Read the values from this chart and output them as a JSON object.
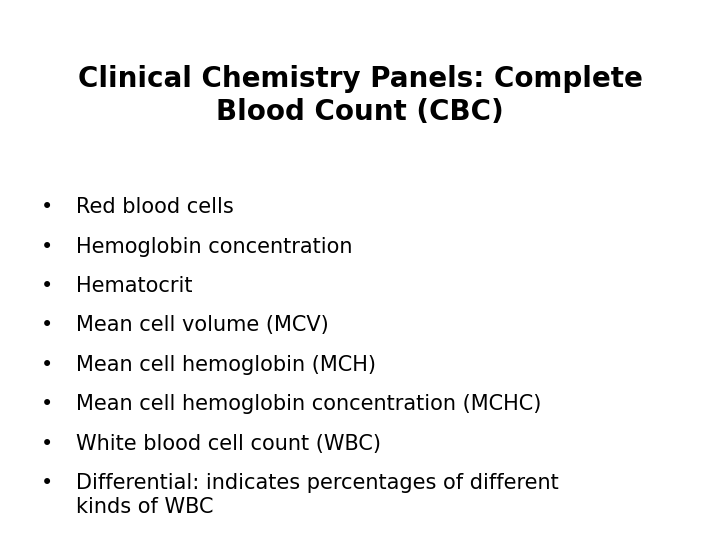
{
  "title_line1": "Clinical Chemistry Panels: Complete",
  "title_line2": "Blood Count (CBC)",
  "bullet_items": [
    "Red blood cells",
    "Hemoglobin concentration",
    "Hematocrit",
    "Mean cell volume (MCV)",
    "Mean cell hemoglobin (MCH)",
    "Mean cell hemoglobin concentration (MCHC)",
    "White blood cell count (WBC)",
    "Differential: indicates percentages of different\nkinds of WBC"
  ],
  "background_color": "#ffffff",
  "text_color": "#000000",
  "title_fontsize": 20,
  "bullet_fontsize": 15,
  "title_font_weight": "bold",
  "bullet_font_weight": "normal",
  "bullet_symbol": "•"
}
